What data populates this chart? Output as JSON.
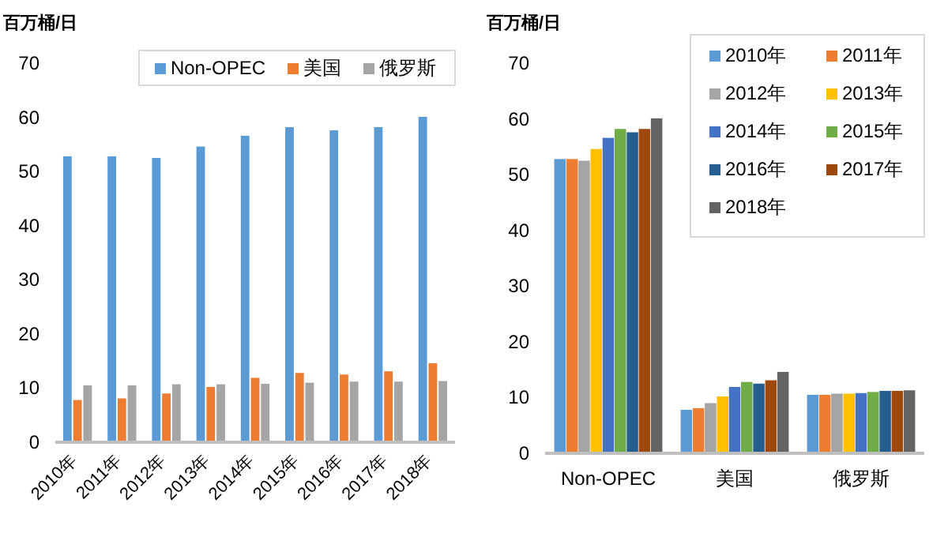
{
  "chart_data": [
    {
      "type": "bar",
      "ylabel": "百万桶/日",
      "categories": [
        "2010年",
        "2011年",
        "2012年",
        "2013年",
        "2014年",
        "2015年",
        "2016年",
        "2017年",
        "2018年"
      ],
      "series": [
        {
          "name": "Non-OPEC",
          "color": "#5b9bd5",
          "values": [
            52.8,
            52.8,
            52.5,
            54.6,
            56.6,
            58.2,
            57.6,
            58.2,
            60.1
          ]
        },
        {
          "name": "美国",
          "color": "#ed7d31",
          "values": [
            7.8,
            8.1,
            9.0,
            10.2,
            11.9,
            12.8,
            12.5,
            13.1,
            14.6
          ]
        },
        {
          "name": "俄罗斯",
          "color": "#a5a5a5",
          "values": [
            10.5,
            10.5,
            10.7,
            10.7,
            10.8,
            11.0,
            11.2,
            11.2,
            11.3
          ]
        }
      ],
      "ylim": [
        0,
        70
      ],
      "yticks": [
        0,
        10,
        20,
        30,
        40,
        50,
        60,
        70
      ],
      "legend": "top"
    },
    {
      "type": "bar",
      "ylabel": "百万桶/日",
      "categories": [
        "Non-OPEC",
        "美国",
        "俄罗斯"
      ],
      "series": [
        {
          "name": "2010年",
          "color": "#5b9bd5",
          "values": [
            52.8,
            7.8,
            10.5
          ]
        },
        {
          "name": "2011年",
          "color": "#ed7d31",
          "values": [
            52.8,
            8.1,
            10.5
          ]
        },
        {
          "name": "2012年",
          "color": "#a5a5a5",
          "values": [
            52.5,
            9.0,
            10.7
          ]
        },
        {
          "name": "2013年",
          "color": "#ffc000",
          "values": [
            54.6,
            10.2,
            10.7
          ]
        },
        {
          "name": "2014年",
          "color": "#4472c4",
          "values": [
            56.6,
            11.9,
            10.8
          ]
        },
        {
          "name": "2015年",
          "color": "#70ad47",
          "values": [
            58.2,
            12.8,
            11.0
          ]
        },
        {
          "name": "2016年",
          "color": "#255e91",
          "values": [
            57.6,
            12.5,
            11.2
          ]
        },
        {
          "name": "2017年",
          "color": "#9e480e",
          "values": [
            58.2,
            13.1,
            11.2
          ]
        },
        {
          "name": "2018年",
          "color": "#636363",
          "values": [
            60.1,
            14.6,
            11.3
          ]
        }
      ],
      "ylim": [
        0,
        70
      ],
      "yticks": [
        0,
        10,
        20,
        30,
        40,
        50,
        60,
        70
      ],
      "legend": "top right"
    }
  ]
}
